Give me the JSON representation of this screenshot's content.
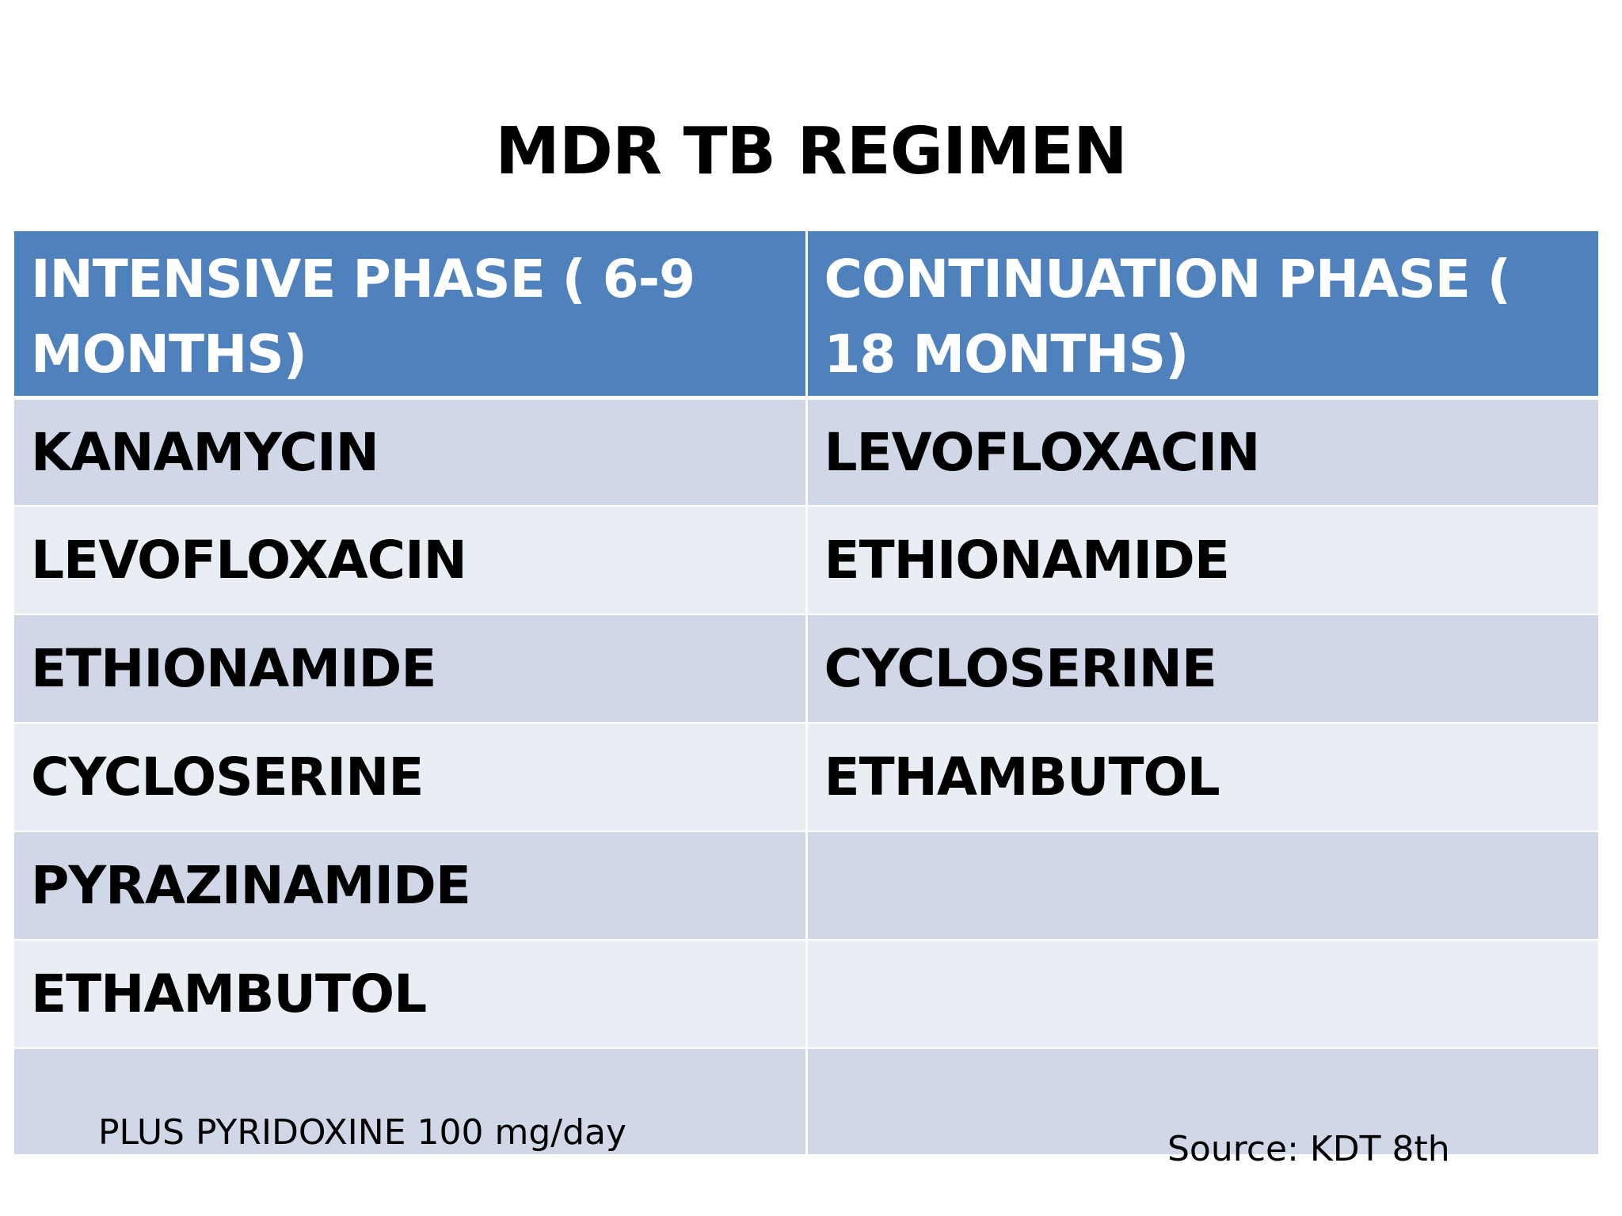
{
  "title": "MDR TB REGIMEN",
  "table": {
    "headers": [
      "INTENSIVE PHASE ( 6-9 MONTHS)",
      "CONTINUATION PHASE ( 18 MONTHS)"
    ],
    "rows": [
      [
        "KANAMYCIN",
        "LEVOFLOXACIN"
      ],
      [
        "LEVOFLOXACIN",
        "ETHIONAMIDE"
      ],
      [
        "ETHIONAMIDE",
        "CYCLOSERINE"
      ],
      [
        "CYCLOSERINE",
        "ETHAMBUTOL"
      ],
      [
        "PYRAZINAMIDE",
        ""
      ],
      [
        "ETHAMBUTOL",
        ""
      ]
    ],
    "note": "PLUS PYRIDOXINE 100 mg/day"
  },
  "source": "Source: KDT 8th",
  "colors": {
    "header_bg": "#4f81bd",
    "row_dark": "#d0d8e8",
    "row_light": "#e9edf4"
  }
}
